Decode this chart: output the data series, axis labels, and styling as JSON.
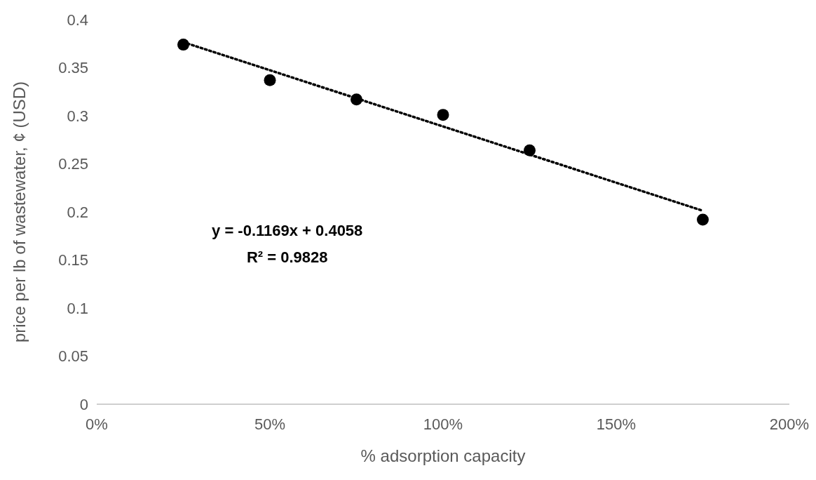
{
  "chart_data": {
    "type": "scatter",
    "xlabel": "% adsorption capacity",
    "ylabel": "price per lb of wastewater, ¢ (USD)",
    "xlim": [
      0,
      2
    ],
    "xticks": [
      {
        "value": 0,
        "label": "0%"
      },
      {
        "value": 0.5,
        "label": "50%"
      },
      {
        "value": 1,
        "label": "100%"
      },
      {
        "value": 1.5,
        "label": "150%"
      },
      {
        "value": 2,
        "label": "200%"
      }
    ],
    "ylim": [
      0,
      0.4
    ],
    "yticks": [
      {
        "value": 0,
        "label": "0"
      },
      {
        "value": 0.05,
        "label": "0.05"
      },
      {
        "value": 0.1,
        "label": "0.1"
      },
      {
        "value": 0.15,
        "label": "0.15"
      },
      {
        "value": 0.2,
        "label": "0.2"
      },
      {
        "value": 0.25,
        "label": "0.25"
      },
      {
        "value": 0.3,
        "label": "0.3"
      },
      {
        "value": 0.35,
        "label": "0.35"
      },
      {
        "value": 0.4,
        "label": "0.4"
      }
    ],
    "x": [
      0.25,
      0.5,
      0.75,
      1,
      1.25,
      1.75
    ],
    "series": [
      {
        "color": "#000000",
        "marker": "circle",
        "values": [
          0.374,
          0.337,
          0.317,
          0.301,
          0.264,
          0.192
        ]
      },
      {
        "type": "line",
        "color": "#000000",
        "line_style": "dotted",
        "marker": "none",
        "x": [
          0.25,
          1.75
        ],
        "values": [
          0.3766,
          0.2012
        ]
      }
    ],
    "annotations": [
      "y = -0.1169x + 0.4058",
      "R² = 0.9828"
    ],
    "grid": false
  }
}
